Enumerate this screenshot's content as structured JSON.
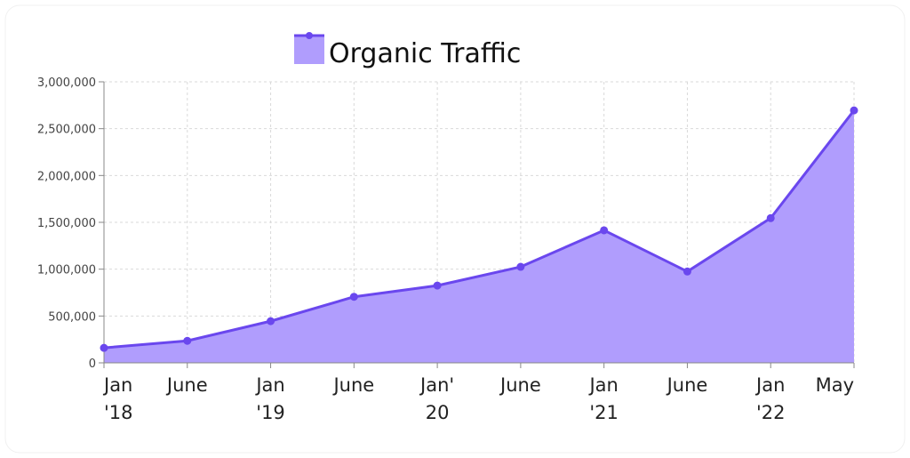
{
  "chart_data": {
    "type": "area",
    "series": [
      {
        "name": "Organic Traffic",
        "values": [
          160000,
          235000,
          445000,
          705000,
          825000,
          1025000,
          1415000,
          975000,
          1545000,
          2695000
        ]
      }
    ],
    "categories": [
      [
        "Jan",
        "'18"
      ],
      [
        "June",
        ""
      ],
      [
        "Jan",
        "'19"
      ],
      [
        "June",
        ""
      ],
      [
        "Jan'",
        "20"
      ],
      [
        "June",
        ""
      ],
      [
        "Jan",
        "'21"
      ],
      [
        "June",
        ""
      ],
      [
        "Jan",
        "'22"
      ],
      [
        "May",
        ""
      ]
    ],
    "yticks": [
      "0",
      "500,000",
      "1,000,000",
      "1,500,000",
      "2,000,000",
      "2,500,000",
      "3,000,000"
    ],
    "ylim": [
      0,
      3000000
    ],
    "grid": true,
    "legend": "top-center",
    "colors": {
      "line": "#6a47ee",
      "fill": "#b09dfd"
    }
  }
}
